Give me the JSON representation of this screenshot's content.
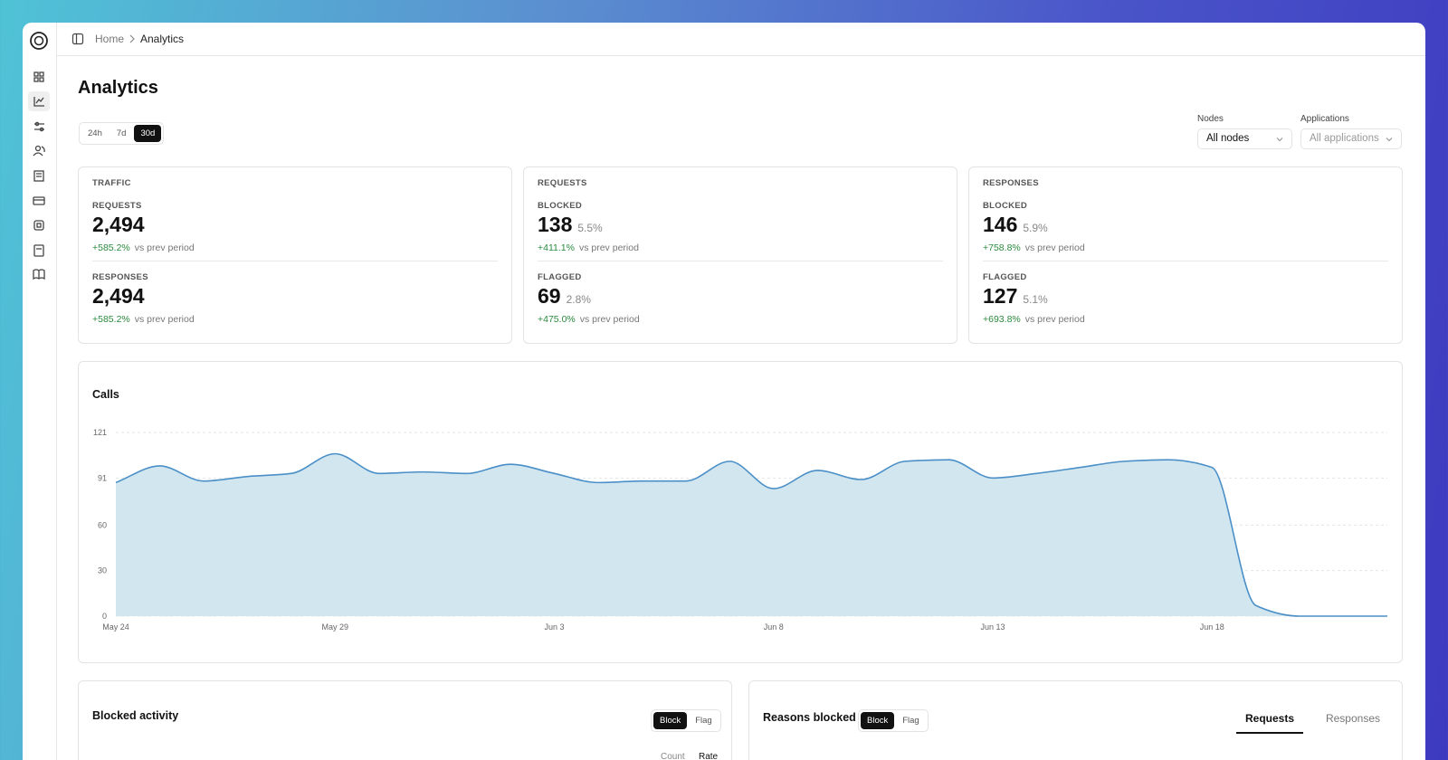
{
  "breadcrumb": [
    "Home",
    "Analytics"
  ],
  "title": "Analytics",
  "ranges": [
    "24h",
    "7d",
    "30d"
  ],
  "active_range": "30d",
  "filters": [
    {
      "label": "Nodes",
      "value": "All nodes"
    },
    {
      "label": "Applications",
      "value": "All applications"
    }
  ],
  "cards": [
    {
      "title": "TRAFFIC",
      "metrics": [
        {
          "label": "REQUESTS",
          "value": "2,494",
          "change": "+585.2%",
          "note": "vs prev period"
        },
        {
          "label": "RESPONSES",
          "value": "2,494",
          "change": "+585.2%",
          "note": "vs prev period"
        }
      ]
    },
    {
      "title": "REQUESTS",
      "metrics": [
        {
          "label": "BLOCKED",
          "value": "138",
          "share": "5.5%",
          "change": "+411.1%",
          "note": "vs prev period"
        },
        {
          "label": "FLAGGED",
          "value": "69",
          "share": "2.8%",
          "change": "+475.0%",
          "note": "vs prev period"
        }
      ]
    },
    {
      "title": "RESPONSES",
      "metrics": [
        {
          "label": "BLOCKED",
          "value": "146",
          "share": "5.9%",
          "change": "+758.8%",
          "note": "vs prev period"
        },
        {
          "label": "FLAGGED",
          "value": "127",
          "share": "5.1%",
          "change": "+693.8%",
          "note": "vs prev period"
        }
      ]
    }
  ],
  "chart_data": {
    "type": "area",
    "title": "Calls",
    "categories": [
      "May 24",
      null,
      null,
      null,
      null,
      "May 29",
      null,
      null,
      null,
      null,
      "Jun 3",
      null,
      null,
      null,
      null,
      "Jun 8",
      null,
      null,
      null,
      null,
      "Jun 13",
      null,
      null,
      null,
      null,
      "Jun 18",
      null,
      null,
      null,
      null
    ],
    "values": [
      88,
      99,
      89,
      92,
      94,
      107,
      94,
      95,
      94,
      100,
      94,
      88,
      89,
      89,
      102,
      84,
      96,
      90,
      102,
      103,
      91,
      94,
      98,
      102,
      103,
      98,
      7,
      0,
      0,
      0
    ],
    "color": "#4a8fc7",
    "fill": "#d1e6ef",
    "ylim": [
      0,
      121
    ],
    "yticks": [
      0,
      30,
      60,
      91,
      121
    ],
    "grid": true
  },
  "panels": [
    {
      "title": "Blocked activity",
      "toggle": [
        "Block",
        "Flag"
      ],
      "active": "Block",
      "modes": [
        "Count",
        "Rate"
      ]
    },
    {
      "title": "Reasons blocked",
      "toggle": [
        "Block",
        "Flag"
      ],
      "active": "Block",
      "tabs": [
        "Requests",
        "Responses"
      ]
    }
  ]
}
